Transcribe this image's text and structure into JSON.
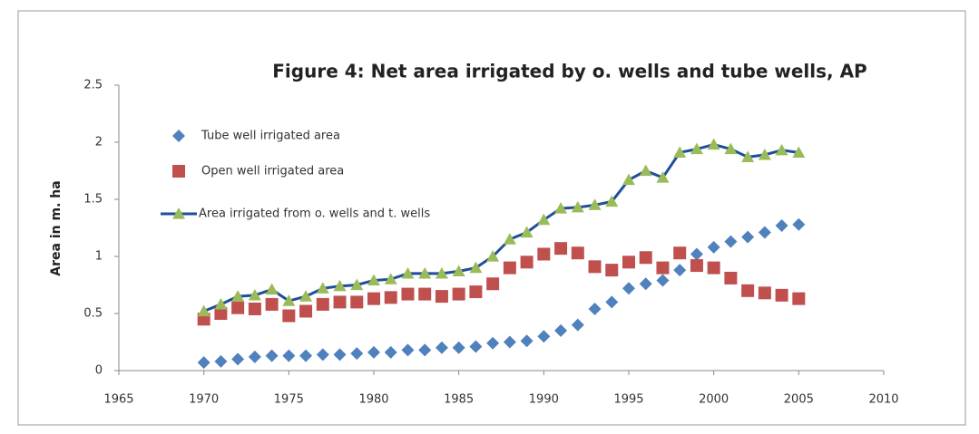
{
  "chart_data": {
    "type": "scatter",
    "title": "Figure 4: Net area irrigated by o. wells and tube wells, AP",
    "y_label": "Area in m. ha",
    "x": [
      1970,
      1971,
      1972,
      1973,
      1974,
      1975,
      1976,
      1977,
      1978,
      1979,
      1980,
      1981,
      1982,
      1983,
      1984,
      1985,
      1986,
      1987,
      1988,
      1989,
      1990,
      1991,
      1992,
      1993,
      1994,
      1995,
      1996,
      1997,
      1998,
      1999,
      2000,
      2001,
      2002,
      2003,
      2004,
      2005
    ],
    "series": [
      {
        "name": "Tube well irrigated area",
        "color": "#4f81bd",
        "marker": "diamond",
        "line": false,
        "values": [
          0.07,
          0.08,
          0.1,
          0.12,
          0.13,
          0.13,
          0.13,
          0.14,
          0.14,
          0.15,
          0.16,
          0.16,
          0.18,
          0.18,
          0.2,
          0.2,
          0.21,
          0.24,
          0.25,
          0.26,
          0.3,
          0.35,
          0.4,
          0.54,
          0.6,
          0.72,
          0.76,
          0.79,
          0.88,
          1.02,
          1.08,
          1.13,
          1.17,
          1.21,
          1.27,
          1.28
        ]
      },
      {
        "name": "Open well irrigated area",
        "color": "#c0504d",
        "marker": "square",
        "line": false,
        "values": [
          0.45,
          0.5,
          0.55,
          0.54,
          0.58,
          0.48,
          0.52,
          0.58,
          0.6,
          0.6,
          0.63,
          0.64,
          0.67,
          0.67,
          0.65,
          0.67,
          0.69,
          0.76,
          0.9,
          0.95,
          1.02,
          1.07,
          1.03,
          0.91,
          0.88,
          0.95,
          0.99,
          0.9,
          1.03,
          0.92,
          0.9,
          0.81,
          0.7,
          0.68,
          0.66,
          0.63
        ]
      },
      {
        "name": "Area irrigated from o. wells and t. wells",
        "color": "#9bbb59",
        "line_color": "#1f4e9c",
        "marker": "triangle",
        "line": true,
        "values": [
          0.52,
          0.58,
          0.65,
          0.66,
          0.71,
          0.61,
          0.65,
          0.72,
          0.74,
          0.75,
          0.79,
          0.8,
          0.85,
          0.85,
          0.85,
          0.87,
          0.9,
          1.0,
          1.15,
          1.21,
          1.32,
          1.42,
          1.43,
          1.45,
          1.48,
          1.67,
          1.75,
          1.69,
          1.91,
          1.94,
          1.98,
          1.94,
          1.87,
          1.89,
          1.93,
          1.91
        ]
      }
    ],
    "xlim": [
      1965,
      2010
    ],
    "xticks": [
      1965,
      1970,
      1975,
      1980,
      1985,
      1990,
      1995,
      2000,
      2005,
      2010
    ],
    "ylim": [
      0,
      2.5
    ],
    "yticks": [
      0,
      0.5,
      1,
      1.5,
      2,
      2.5
    ],
    "grid": false,
    "legend": "upper left"
  }
}
